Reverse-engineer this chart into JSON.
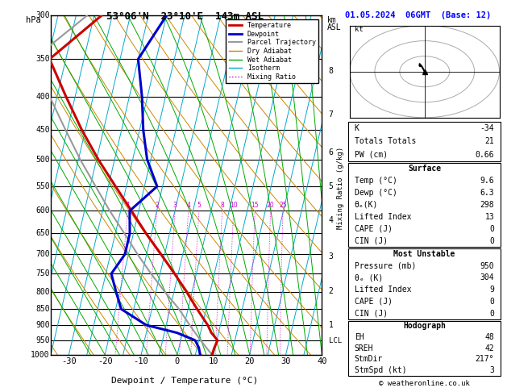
{
  "title_left": "53°06'N  23°10'E  143m ASL",
  "title_right": "01.05.2024  06GMT  (Base: 12)",
  "xlabel": "Dewpoint / Temperature (°C)",
  "pres_levels": [
    300,
    350,
    400,
    450,
    500,
    550,
    600,
    650,
    700,
    750,
    800,
    850,
    900,
    950,
    1000
  ],
  "temp_pressure": [
    1000,
    975,
    950,
    925,
    900,
    850,
    800,
    750,
    700,
    650,
    600,
    550,
    500,
    450,
    400,
    350,
    300
  ],
  "temp_values": [
    9.6,
    9.8,
    10.2,
    8.0,
    6.5,
    2.5,
    -1.5,
    -6.0,
    -11.0,
    -16.5,
    -22.0,
    -28.0,
    -34.5,
    -41.0,
    -47.5,
    -54.5,
    -43.0
  ],
  "dewp_pressure": [
    1000,
    975,
    950,
    925,
    900,
    850,
    800,
    750,
    700,
    650,
    600,
    550,
    500,
    450,
    400,
    350,
    300
  ],
  "dewp_values": [
    6.3,
    5.5,
    4.0,
    -1.5,
    -10.5,
    -18.5,
    -21.0,
    -23.5,
    -21.0,
    -21.0,
    -22.5,
    -16.5,
    -21.0,
    -24.0,
    -26.5,
    -30.0,
    -25.0
  ],
  "parcel_pressure": [
    1000,
    950,
    900,
    850,
    800,
    750,
    700,
    650,
    600,
    550,
    500,
    450,
    400,
    350,
    300
  ],
  "parcel_values": [
    9.6,
    5.5,
    1.5,
    -2.5,
    -7.5,
    -12.5,
    -17.5,
    -22.5,
    -28.0,
    -33.5,
    -39.5,
    -45.5,
    -52.0,
    -59.0,
    -47.0
  ],
  "mixing_ratios": [
    1,
    2,
    3,
    4,
    5,
    8,
    10,
    15,
    20,
    25
  ],
  "lcl_pressure": 952,
  "skew_factor": 22.0,
  "xlim": [
    -35,
    40
  ],
  "p_min": 300,
  "p_max": 1000,
  "temp_color": "#cc0000",
  "dewp_color": "#0000cc",
  "parcel_color": "#999999",
  "dry_adiabat_color": "#cc8800",
  "wet_adiabat_color": "#00aa00",
  "isotherm_color": "#00aacc",
  "mixing_ratio_color": "#cc00cc",
  "stats_K": -34,
  "stats_TT": 21,
  "stats_PW": 0.66,
  "stats_sfc_temp": 9.6,
  "stats_sfc_dewp": 6.3,
  "stats_sfc_thetae": 298,
  "stats_sfc_LI": 13,
  "stats_sfc_CAPE": 0,
  "stats_sfc_CIN": 0,
  "stats_mu_pres": 950,
  "stats_mu_thetae": 304,
  "stats_mu_LI": 9,
  "stats_mu_CAPE": 0,
  "stats_mu_CIN": 0,
  "stats_EH": 48,
  "stats_SREH": 42,
  "stats_StmDir": 217,
  "stats_StmSpd": 3,
  "km_pressures": [
    899,
    799,
    706,
    620,
    550,
    487,
    426,
    365
  ],
  "km_labels": [
    "1",
    "2",
    "3",
    "4",
    "5",
    "6",
    "7",
    "8"
  ]
}
